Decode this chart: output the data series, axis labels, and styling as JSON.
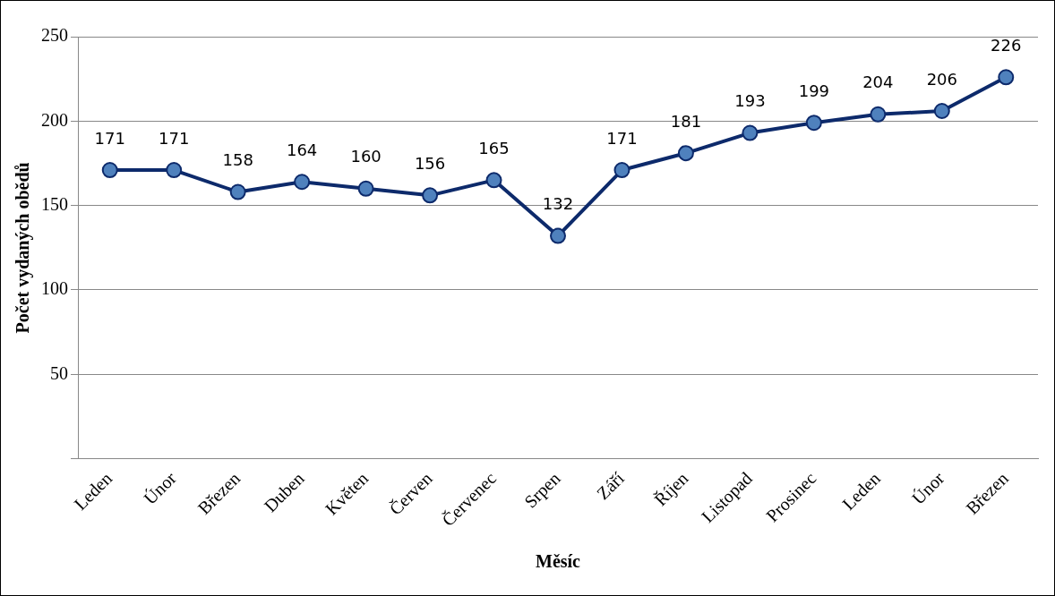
{
  "chart_data": {
    "type": "line",
    "xlabel": "Měsíc",
    "ylabel": "Počet vydaných obědů",
    "categories": [
      "Leden",
      "Únor",
      "Březen",
      "Duben",
      "Květen",
      "Červen",
      "Červenec",
      "Srpen",
      "Září",
      "Říjen",
      "Listopad",
      "Prosinec",
      "Leden",
      "Únor",
      "Březen"
    ],
    "series": [
      {
        "color": "#0d2a6b",
        "values": [
          171,
          171,
          158,
          164,
          160,
          156,
          165,
          132,
          171,
          181,
          193,
          199,
          204,
          206,
          226
        ]
      }
    ],
    "ylim": [
      0,
      250
    ],
    "yticks": [
      {
        "value": 0,
        "label": null
      },
      50,
      100,
      150,
      200,
      250
    ],
    "grid": "y",
    "legend": false,
    "marker": "circle",
    "line_style": "solid",
    "data_labels": true
  }
}
